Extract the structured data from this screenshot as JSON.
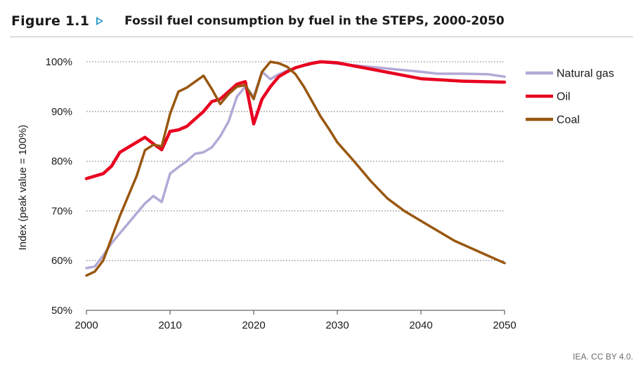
{
  "figure": {
    "number": "Figure 1.1",
    "title": "Fossil fuel consumption by fuel in the STEPS, 2000-2050",
    "credit": "IEA. CC BY 4.0."
  },
  "colors": {
    "natural_gas": "#b3a9d6",
    "oil": "#e8001f",
    "coal": "#99570f",
    "grid": "#8c8c8c",
    "axis": "#404040",
    "arrow_icon": "#2e9cc4"
  },
  "chart_data": {
    "type": "line",
    "title": "Fossil fuel consumption by fuel in the STEPS, 2000-2050",
    "xlabel": "",
    "ylabel": "Index (peak value = 100%)",
    "xlim": [
      2000,
      2050
    ],
    "ylim": [
      50,
      100
    ],
    "x_ticks": [
      "2000",
      "2010",
      "2020",
      "2030",
      "2040",
      "2050"
    ],
    "x_tick_values": [
      2000,
      2010,
      2020,
      2030,
      2040,
      2050
    ],
    "y_ticks": [
      "50%",
      "60%",
      "70%",
      "80%",
      "90%",
      "100%"
    ],
    "y_tick_values": [
      50,
      60,
      70,
      80,
      90,
      100
    ],
    "grid": "horizontal dotted",
    "legend_position": "right",
    "series": [
      {
        "name": "Natural gas",
        "color_key": "natural_gas",
        "points": [
          [
            2000,
            58.5
          ],
          [
            2001,
            58.8
          ],
          [
            2002,
            61
          ],
          [
            2003,
            63.5
          ],
          [
            2004,
            65.5
          ],
          [
            2005,
            67.5
          ],
          [
            2006,
            69.5
          ],
          [
            2007,
            71.5
          ],
          [
            2008,
            73
          ],
          [
            2009,
            71.8
          ],
          [
            2010,
            77.5
          ],
          [
            2011,
            78.8
          ],
          [
            2012,
            80
          ],
          [
            2013,
            81.5
          ],
          [
            2014,
            81.8
          ],
          [
            2015,
            82.8
          ],
          [
            2016,
            85
          ],
          [
            2017,
            88
          ],
          [
            2018,
            93
          ],
          [
            2019,
            95
          ],
          [
            2020,
            93
          ],
          [
            2021,
            98
          ],
          [
            2022,
            96.5
          ],
          [
            2023,
            97.5
          ],
          [
            2024,
            98.2
          ],
          [
            2025,
            98.8
          ],
          [
            2026,
            99.2
          ],
          [
            2027,
            99.6
          ],
          [
            2028,
            100
          ],
          [
            2030,
            99.6
          ],
          [
            2035,
            98.8
          ],
          [
            2040,
            98
          ],
          [
            2042,
            97.6
          ],
          [
            2045,
            97.6
          ],
          [
            2048,
            97.5
          ],
          [
            2050,
            97
          ]
        ]
      },
      {
        "name": "Oil",
        "color_key": "oil",
        "points": [
          [
            2000,
            76.5
          ],
          [
            2001,
            77
          ],
          [
            2002,
            77.5
          ],
          [
            2003,
            79
          ],
          [
            2004,
            81.8
          ],
          [
            2005,
            82.8
          ],
          [
            2006,
            83.8
          ],
          [
            2007,
            84.8
          ],
          [
            2008,
            83.5
          ],
          [
            2009,
            82.3
          ],
          [
            2010,
            86
          ],
          [
            2011,
            86.3
          ],
          [
            2012,
            87
          ],
          [
            2013,
            88.5
          ],
          [
            2014,
            90
          ],
          [
            2015,
            92
          ],
          [
            2016,
            92.5
          ],
          [
            2017,
            94
          ],
          [
            2018,
            95.5
          ],
          [
            2019,
            96
          ],
          [
            2020,
            87.5
          ],
          [
            2021,
            92.5
          ],
          [
            2022,
            95
          ],
          [
            2023,
            97
          ],
          [
            2024,
            98
          ],
          [
            2025,
            98.8
          ],
          [
            2026,
            99.3
          ],
          [
            2027,
            99.7
          ],
          [
            2028,
            100
          ],
          [
            2030,
            99.8
          ],
          [
            2035,
            98.2
          ],
          [
            2040,
            96.6
          ],
          [
            2045,
            96.1
          ],
          [
            2050,
            95.9
          ]
        ]
      },
      {
        "name": "Coal",
        "color_key": "coal",
        "points": [
          [
            2000,
            57
          ],
          [
            2001,
            57.8
          ],
          [
            2002,
            60
          ],
          [
            2003,
            64.5
          ],
          [
            2004,
            69
          ],
          [
            2005,
            73
          ],
          [
            2006,
            77
          ],
          [
            2007,
            82.2
          ],
          [
            2008,
            83.3
          ],
          [
            2009,
            83
          ],
          [
            2010,
            89.5
          ],
          [
            2011,
            94
          ],
          [
            2012,
            94.8
          ],
          [
            2013,
            96
          ],
          [
            2014,
            97.2
          ],
          [
            2015,
            94.5
          ],
          [
            2016,
            91.5
          ],
          [
            2017,
            93.5
          ],
          [
            2018,
            95
          ],
          [
            2019,
            95.3
          ],
          [
            2020,
            92.5
          ],
          [
            2021,
            98
          ],
          [
            2022,
            100
          ],
          [
            2023,
            99.7
          ],
          [
            2024,
            99
          ],
          [
            2025,
            97.5
          ],
          [
            2026,
            95
          ],
          [
            2027,
            92
          ],
          [
            2028,
            89
          ],
          [
            2029,
            86.5
          ],
          [
            2030,
            83.8
          ],
          [
            2032,
            80
          ],
          [
            2034,
            76
          ],
          [
            2036,
            72.5
          ],
          [
            2038,
            70
          ],
          [
            2040,
            68
          ],
          [
            2042,
            66
          ],
          [
            2044,
            64
          ],
          [
            2046,
            62.5
          ],
          [
            2048,
            61
          ],
          [
            2050,
            59.5
          ]
        ]
      }
    ]
  }
}
